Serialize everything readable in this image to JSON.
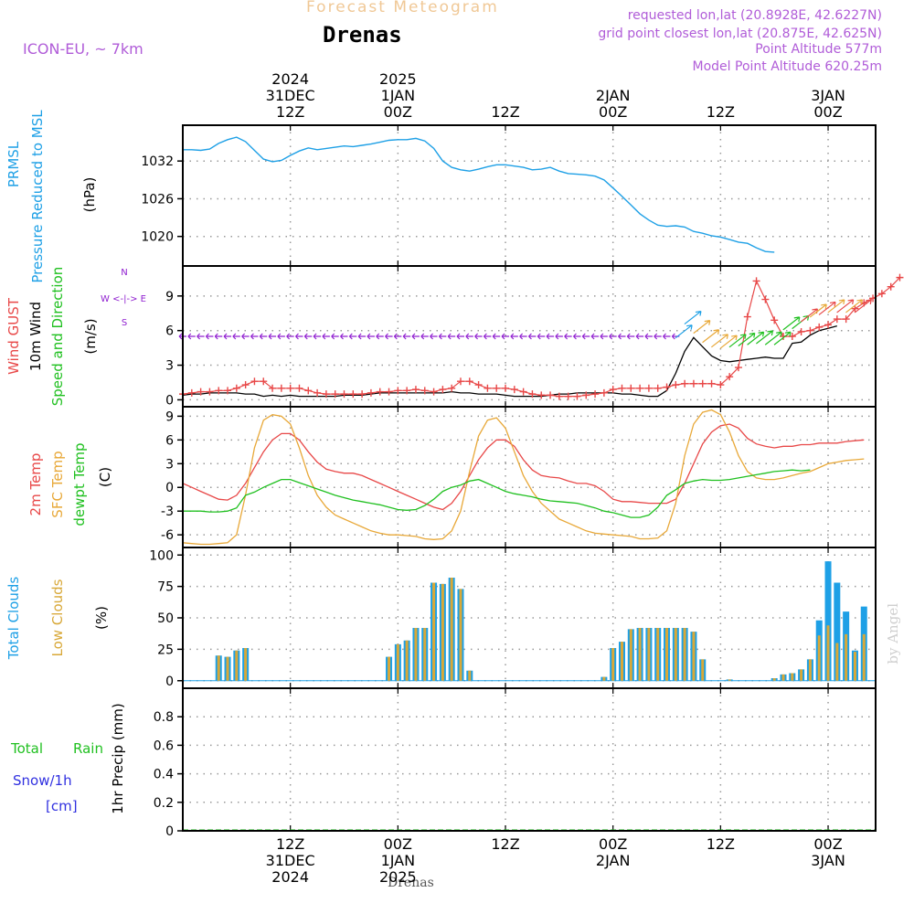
{
  "header": {
    "title": "Forecast Meteogram",
    "station": "Drenas",
    "model": "ICON-EU, ~ 7km",
    "requested": "requested lon,lat (20.8928E, 42.6227N)",
    "grid_point": "grid point closest lon,lat (20.875E, 42.625N)",
    "point_altitude": "Point Altitude 577m",
    "model_altitude": "Model Point Altitude 620.25m"
  },
  "footer_station": "Drenas",
  "watermark": "by Angel",
  "colors": {
    "pressure": "#1ea0e6",
    "gust": "#e84848",
    "wind": "#000000",
    "t2m": "#e84848",
    "tsfc": "#e8a838",
    "dewpt": "#20c020",
    "total_clouds": "#1ea0e6",
    "low_clouds": "#d8a838",
    "rain": "#20c020",
    "snow": "#3030e0",
    "direction": "#9020d0"
  },
  "time_axis": {
    "top_ticks": [
      {
        "t": 12,
        "lines": [
          "2024",
          "31DEC",
          "12Z"
        ]
      },
      {
        "t": 24,
        "lines": [
          "2025",
          "1JAN",
          "00Z"
        ]
      },
      {
        "t": 36,
        "lines": [
          "12Z"
        ]
      },
      {
        "t": 48,
        "lines": [
          "2JAN",
          "00Z"
        ]
      },
      {
        "t": 60,
        "lines": [
          "12Z"
        ]
      },
      {
        "t": 72,
        "lines": [
          "3JAN",
          "00Z"
        ]
      }
    ],
    "bottom_ticks": [
      {
        "t": 12,
        "lines": [
          "12Z",
          "31DEC",
          "2024"
        ]
      },
      {
        "t": 24,
        "lines": [
          "00Z",
          "1JAN",
          "2025"
        ]
      },
      {
        "t": 36,
        "lines": [
          "12Z"
        ]
      },
      {
        "t": 48,
        "lines": [
          "00Z",
          "2JAN"
        ]
      },
      {
        "t": 60,
        "lines": [
          "12Z"
        ]
      },
      {
        "t": 72,
        "lines": [
          "00Z",
          "3JAN"
        ]
      }
    ]
  },
  "chart_data": [
    {
      "type": "line",
      "panel": "pressure",
      "ylabel_lines": [
        "PRMSL",
        "Pressure Reduced to MSL"
      ],
      "units": "(hPa)",
      "ylim": [
        1015.3,
        1037.7
      ],
      "yticks": [
        1020,
        1026,
        1032
      ],
      "x_hours": [
        0,
        1,
        2,
        3,
        4,
        5,
        6,
        7,
        8,
        9,
        10,
        11,
        12,
        13,
        14,
        15,
        16,
        17,
        18,
        19,
        20,
        21,
        22,
        23,
        24,
        25,
        26,
        27,
        28,
        29,
        30,
        31,
        32,
        33,
        34,
        35,
        36,
        37,
        38,
        39,
        40,
        41,
        42,
        43,
        44,
        45,
        46,
        47,
        48,
        49,
        50,
        51,
        52,
        53,
        54,
        55,
        56,
        57,
        58,
        59,
        60,
        61,
        62,
        63,
        64,
        65,
        66,
        67,
        68,
        69,
        70,
        71,
        72,
        73,
        74,
        75,
        76
      ],
      "series": [
        {
          "name": "",
          "values": [
            1033.8,
            1033.8,
            1033.7,
            1033.9,
            1034.8,
            1035.4,
            1035.8,
            1035.1,
            1033.7,
            1032.3,
            1031.9,
            1032.1,
            1032.9,
            1033.6,
            1034.1,
            1033.8,
            1034.0,
            1034.2,
            1034.4,
            1034.3,
            1034.5,
            1034.7,
            1035.0,
            1035.3,
            1035.4,
            1035.4,
            1035.6,
            1035.2,
            1034.0,
            1032.0,
            1031.0,
            1030.6,
            1030.4,
            1030.7,
            1031.1,
            1031.4,
            1031.4,
            1031.2,
            1031.0,
            1030.6,
            1030.7,
            1031.0,
            1030.4,
            1030.0,
            1029.9,
            1029.8,
            1029.6,
            1029.0,
            1027.7,
            1026.4,
            1025.0,
            1023.6,
            1022.6,
            1021.8,
            1021.6,
            1021.7,
            1021.5,
            1020.8,
            1020.5,
            1020.1,
            1019.9,
            1019.5,
            1019.1,
            1018.9,
            1018.2,
            1017.6,
            1017.5
          ]
        }
      ]
    },
    {
      "type": "line",
      "panel": "wind",
      "ylabel_lines_red": [
        "Wind GUST"
      ],
      "ylabel_lines_black": [
        "10m Wind"
      ],
      "ylabel_lines_green": [
        "Speed and Direction"
      ],
      "units": "(m/s)",
      "compass": [
        "N",
        "W <-|-> E",
        "S"
      ],
      "ylim": [
        -0.6,
        11.6
      ],
      "yticks": [
        0,
        3,
        6,
        9
      ],
      "series": [
        {
          "name": "10m Wind",
          "values": [
            0.4,
            0.5,
            0.5,
            0.6,
            0.6,
            0.6,
            0.6,
            0.5,
            0.5,
            0.3,
            0.4,
            0.3,
            0.4,
            0.3,
            0.3,
            0.3,
            0.3,
            0.3,
            0.4,
            0.4,
            0.4,
            0.5,
            0.6,
            0.6,
            0.6,
            0.6,
            0.6,
            0.6,
            0.6,
            0.6,
            0.7,
            0.6,
            0.6,
            0.5,
            0.5,
            0.5,
            0.4,
            0.3,
            0.3,
            0.3,
            0.3,
            0.4,
            0.5,
            0.5,
            0.6,
            0.6,
            0.6,
            0.6,
            0.6,
            0.5,
            0.5,
            0.4,
            0.3,
            0.3,
            0.8,
            2.3,
            4.2,
            5.4,
            4.6,
            3.8,
            3.4,
            3.3,
            3.4,
            3.5,
            3.6,
            3.7,
            3.6,
            3.6,
            4.9,
            5.0,
            5.6,
            6.0,
            6.2,
            6.4
          ]
        },
        {
          "name": "Wind GUST",
          "values": [
            0.5,
            0.6,
            0.7,
            0.7,
            0.8,
            0.8,
            1.0,
            1.3,
            1.6,
            1.6,
            1.0,
            1.0,
            1.0,
            1.0,
            0.8,
            0.6,
            0.5,
            0.5,
            0.5,
            0.5,
            0.5,
            0.6,
            0.7,
            0.7,
            0.8,
            0.8,
            0.9,
            0.8,
            0.7,
            0.9,
            1.0,
            1.6,
            1.6,
            1.3,
            1.0,
            1.0,
            1.0,
            0.9,
            0.7,
            0.5,
            0.4,
            0.4,
            0.3,
            0.3,
            0.3,
            0.4,
            0.5,
            0.6,
            0.9,
            1.0,
            1.0,
            1.0,
            1.0,
            1.0,
            1.1,
            1.3,
            1.4,
            1.4,
            1.4,
            1.4,
            1.3,
            2.0,
            2.8,
            7.2,
            10.3,
            8.7,
            6.9,
            5.5,
            5.5,
            5.9,
            6.0,
            6.3,
            6.5,
            7.0,
            7.0,
            7.9,
            8.4,
            8.8,
            9.2,
            9.8,
            10.6
          ]
        }
      ]
    },
    {
      "type": "line",
      "panel": "temperature",
      "ylabel_lines": [
        "2m Temp",
        "SFC Temp",
        "dewpt Temp"
      ],
      "units": "(C)",
      "ylim": [
        -7.6,
        10.2
      ],
      "yticks": [
        -6,
        -3,
        0,
        3,
        6,
        9
      ],
      "series": [
        {
          "name": "2m Temp",
          "values": [
            0.5,
            0.0,
            -0.5,
            -1.0,
            -1.5,
            -1.6,
            -1.0,
            0.5,
            2.5,
            4.5,
            6.0,
            6.8,
            6.8,
            6.0,
            4.5,
            3.2,
            2.3,
            2.0,
            1.8,
            1.8,
            1.5,
            1.0,
            0.5,
            0.0,
            -0.5,
            -1.0,
            -1.5,
            -2.0,
            -2.5,
            -2.8,
            -2.0,
            -0.5,
            1.5,
            3.5,
            5.0,
            6.0,
            6.0,
            5.2,
            3.5,
            2.2,
            1.5,
            1.3,
            1.2,
            0.8,
            0.5,
            0.5,
            0.2,
            -0.5,
            -1.5,
            -1.8,
            -1.8,
            -1.9,
            -2.0,
            -2.0,
            -2.0,
            -1.5,
            0.5,
            3.0,
            5.5,
            7.0,
            7.8,
            8.0,
            7.5,
            6.2,
            5.5,
            5.2,
            5.0,
            5.2,
            5.2,
            5.4,
            5.4,
            5.6,
            5.6,
            5.6,
            5.8,
            5.9,
            6.0
          ]
        },
        {
          "name": "SFC Temp",
          "values": [
            -7.0,
            -7.1,
            -7.2,
            -7.2,
            -7.1,
            -7.0,
            -6.0,
            -1.0,
            5.0,
            8.5,
            9.2,
            9.0,
            8.0,
            5.0,
            1.5,
            -1.0,
            -2.5,
            -3.5,
            -4.0,
            -4.5,
            -5.0,
            -5.5,
            -5.8,
            -6.0,
            -6.0,
            -6.1,
            -6.2,
            -6.5,
            -6.6,
            -6.5,
            -5.5,
            -3.0,
            2.0,
            6.5,
            8.5,
            8.8,
            7.5,
            4.5,
            1.5,
            -0.5,
            -2.0,
            -3.0,
            -4.0,
            -4.5,
            -5.0,
            -5.5,
            -5.8,
            -5.9,
            -6.0,
            -6.1,
            -6.2,
            -6.5,
            -6.5,
            -6.4,
            -5.5,
            -2.0,
            4.0,
            8.0,
            9.5,
            9.8,
            9.2,
            7.0,
            4.0,
            2.0,
            1.2,
            1.0,
            1.0,
            1.2,
            1.5,
            1.8,
            2.0,
            2.5,
            3.0,
            3.2,
            3.4,
            3.5,
            3.6
          ]
        },
        {
          "name": "dewpt Temp",
          "values": [
            -3.0,
            -3.0,
            -3.0,
            -3.1,
            -3.1,
            -3.0,
            -2.6,
            -1.0,
            -0.6,
            0.0,
            0.5,
            1.0,
            1.0,
            0.6,
            0.2,
            -0.2,
            -0.6,
            -1.0,
            -1.3,
            -1.6,
            -1.8,
            -2.0,
            -2.2,
            -2.5,
            -2.8,
            -2.9,
            -2.8,
            -2.3,
            -1.5,
            -0.5,
            0.0,
            0.3,
            0.8,
            1.0,
            0.5,
            0.0,
            -0.5,
            -0.8,
            -1.0,
            -1.2,
            -1.5,
            -1.7,
            -1.8,
            -1.9,
            -2.0,
            -2.3,
            -2.6,
            -3.0,
            -3.2,
            -3.5,
            -3.8,
            -3.8,
            -3.5,
            -2.5,
            -1.0,
            -0.3,
            0.5,
            0.8,
            1.0,
            0.9,
            0.9,
            1.0,
            1.2,
            1.4,
            1.6,
            1.8,
            2.0,
            2.1,
            2.2,
            2.1,
            2.2
          ]
        }
      ]
    },
    {
      "type": "bar",
      "panel": "clouds",
      "ylabel_lines": [
        "Total Clouds",
        "Low Clouds"
      ],
      "units": "(%)",
      "ylim": [
        -6,
        106
      ],
      "yticks": [
        0,
        25,
        50,
        75,
        100
      ],
      "x_hours": [
        4,
        5,
        6,
        7,
        23,
        24,
        25,
        26,
        27,
        28,
        29,
        30,
        31,
        32,
        47,
        48,
        49,
        50,
        51,
        52,
        53,
        54,
        55,
        56,
        57,
        58,
        61,
        66,
        67,
        68,
        69,
        70,
        71,
        72,
        73,
        74,
        75,
        76,
        77,
        78,
        79
      ],
      "series": [
        {
          "name": "Total Clouds",
          "values": [
            20,
            19,
            24,
            26,
            19,
            29,
            32,
            42,
            42,
            78,
            77,
            82,
            73,
            8,
            3,
            26,
            31,
            41,
            42,
            42,
            42,
            42,
            42,
            42,
            39,
            17,
            1,
            2,
            5,
            6,
            9,
            17,
            48,
            95,
            78,
            55,
            24,
            59,
            91,
            83,
            83
          ]
        },
        {
          "name": "Low Clouds",
          "values": [
            20,
            19,
            24,
            26,
            19,
            29,
            32,
            42,
            42,
            78,
            77,
            82,
            73,
            8,
            3,
            26,
            31,
            41,
            42,
            42,
            42,
            42,
            42,
            42,
            39,
            17,
            1,
            2,
            5,
            6,
            9,
            17,
            36,
            44,
            30,
            37,
            23,
            37,
            40,
            35,
            35
          ]
        }
      ]
    },
    {
      "type": "line",
      "panel": "precip",
      "ylabel_line": "1hr Precip (mm)",
      "legend_total": "Total",
      "legend_rain": "Rain",
      "legend_snow": "Snow/1h",
      "legend_cm": "[cm]",
      "ylim": [
        0,
        1.0
      ],
      "yticks": [
        0,
        0.2,
        0.4,
        0.6,
        0.8
      ],
      "ytick_labels": [
        "0",
        "0.2",
        "0.4",
        "0.6",
        "0.8"
      ],
      "series": [
        {
          "name": "Total Rain",
          "values": [
            0,
            0,
            0,
            0,
            0,
            0,
            0,
            0,
            0,
            0,
            0,
            0,
            0,
            0,
            0,
            0,
            0,
            0,
            0,
            0,
            0,
            0,
            0,
            0,
            0,
            0,
            0,
            0,
            0,
            0,
            0,
            0,
            0,
            0,
            0,
            0,
            0,
            0,
            0,
            0,
            0,
            0,
            0,
            0,
            0,
            0,
            0,
            0,
            0,
            0,
            0,
            0,
            0,
            0,
            0,
            0,
            0,
            0,
            0,
            0,
            0,
            0,
            0,
            0,
            0,
            0,
            0,
            0,
            0,
            0,
            0,
            0,
            0,
            0,
            0,
            0,
            0
          ]
        }
      ]
    }
  ]
}
